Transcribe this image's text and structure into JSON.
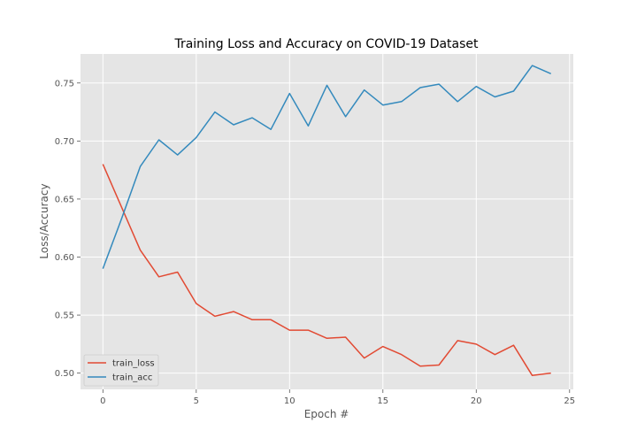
{
  "chart_data": {
    "type": "line",
    "title": "Training Loss and Accuracy on COVID-19 Dataset",
    "xlabel": "Epoch #",
    "ylabel": "Loss/Accuracy",
    "xlim": [
      -1.2,
      25.2
    ],
    "ylim": [
      0.486,
      0.775
    ],
    "xticks": [
      0,
      5,
      10,
      15,
      20,
      25
    ],
    "yticks": [
      0.5,
      0.55,
      0.6,
      0.65,
      0.7,
      0.75
    ],
    "grid": true,
    "legend_position": "lower-left",
    "x": [
      0,
      1,
      2,
      3,
      4,
      5,
      6,
      7,
      8,
      9,
      10,
      11,
      12,
      13,
      14,
      15,
      16,
      17,
      18,
      19,
      20,
      21,
      22,
      23,
      24
    ],
    "series": [
      {
        "name": "train_loss",
        "color": "#e24a33",
        "values": [
          0.68,
          0.643,
          0.606,
          0.583,
          0.587,
          0.56,
          0.549,
          0.553,
          0.546,
          0.546,
          0.537,
          0.537,
          0.53,
          0.531,
          0.513,
          0.523,
          0.516,
          0.506,
          0.507,
          0.528,
          0.525,
          0.516,
          0.524,
          0.498,
          0.5
        ]
      },
      {
        "name": "train_acc",
        "color": "#348abd",
        "values": [
          0.59,
          0.633,
          0.678,
          0.701,
          0.688,
          0.703,
          0.725,
          0.714,
          0.72,
          0.71,
          0.741,
          0.713,
          0.748,
          0.721,
          0.744,
          0.731,
          0.734,
          0.746,
          0.749,
          0.734,
          0.747,
          0.738,
          0.743,
          0.765,
          0.758
        ]
      }
    ]
  }
}
